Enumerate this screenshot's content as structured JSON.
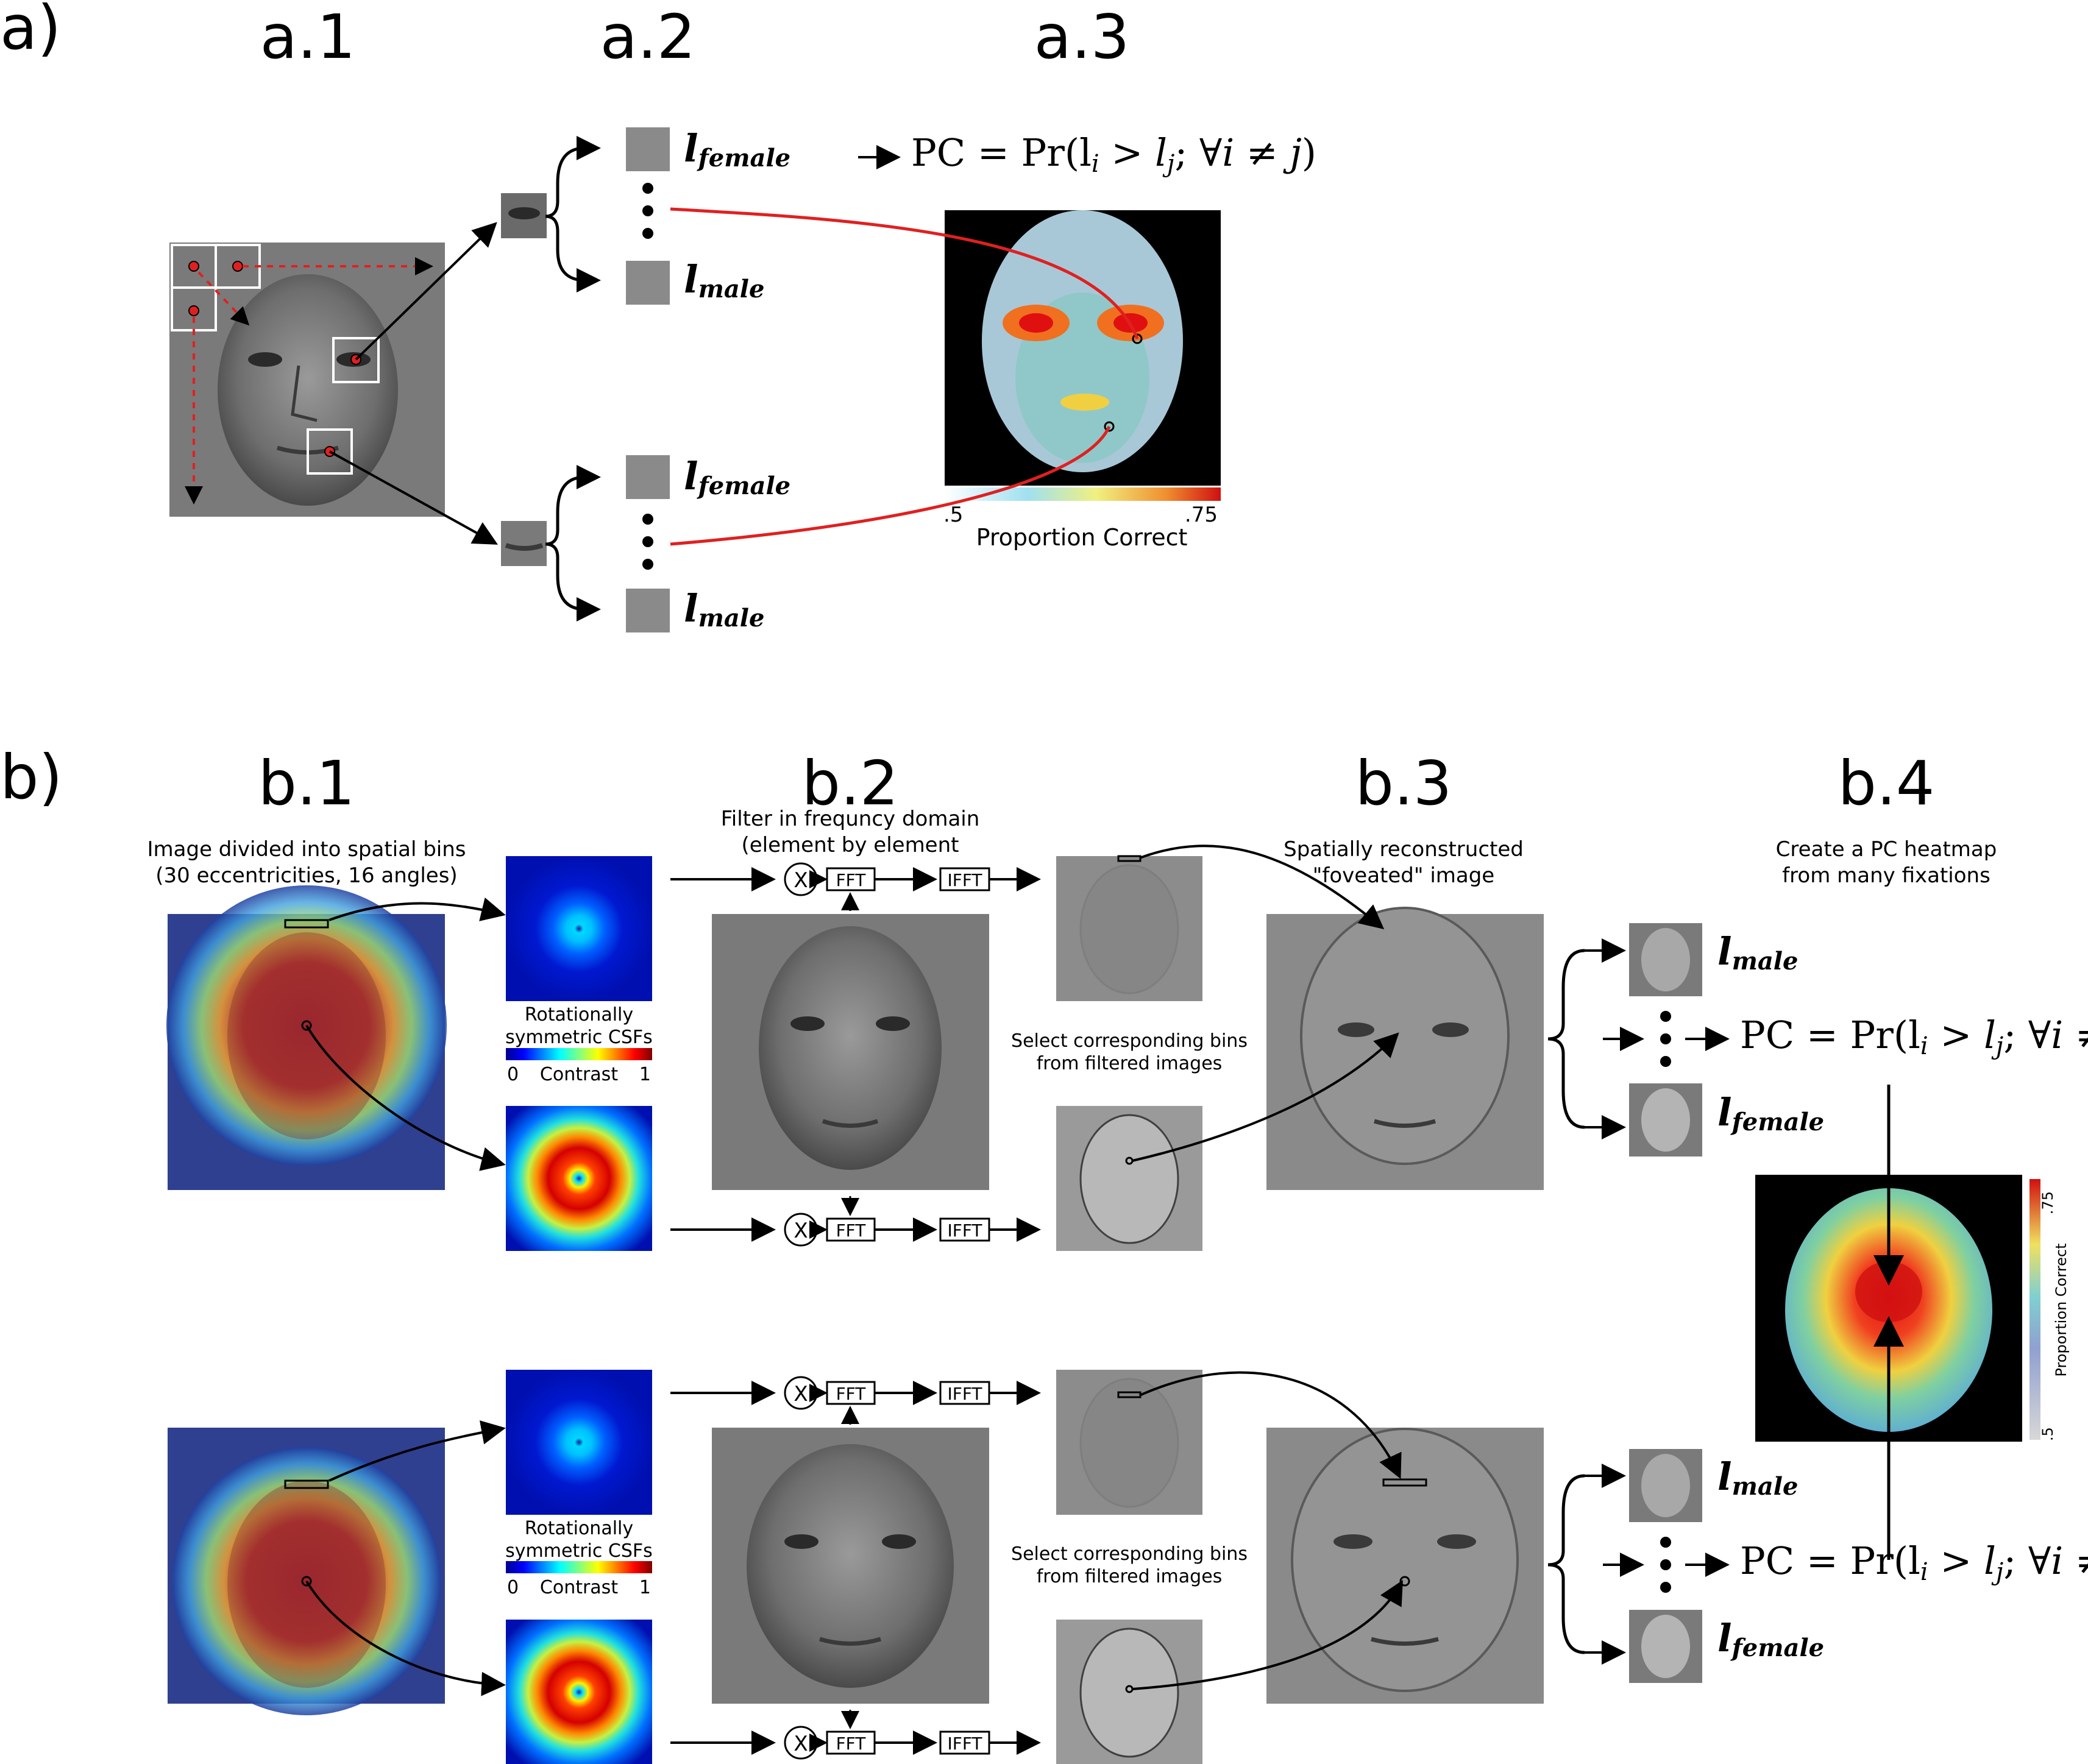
{
  "panel_a": {
    "label": "a)",
    "titles": {
      "a1": "a.1",
      "a2": "a.2",
      "a3": "a.3"
    },
    "labels": {
      "female": "female",
      "male": "male"
    },
    "formula": "PC = Pr(l",
    "heatmap": {
      "colorbar_min": ".5",
      "colorbar_max": ".75",
      "colorbar_title": "Proportion Correct"
    }
  },
  "panel_b": {
    "label": "b)",
    "titles": {
      "b1": "b.1",
      "b2": "b.2",
      "b3": "b.3",
      "b4": "b.4"
    },
    "b1_caption_line1": "Image divided into spatial bins",
    "b1_caption_line2": "(30 eccentricities, 16 angles)",
    "b2_caption_line1": "Filter in frequncy domain",
    "b2_caption_line2": "(element by element",
    "b3_caption_line1": "Spatially reconstructed",
    "b3_caption_line2": "\"foveated\" image",
    "b4_caption_line1": "Create a PC heatmap",
    "b4_caption_line2": "from many fixations",
    "csf_line1": "Rotationally",
    "csf_line2": "symmetric CSFs",
    "csf_min": "0",
    "csf_mid": "Contrast",
    "csf_max": "1",
    "select_line1": "Select corresponding bins",
    "select_line2": "from filtered images",
    "multiply": "X",
    "fft": "FFT",
    "ifft": "IFFT",
    "heatmap_colorbar_title": "Proportion Correct",
    "heatmap_colorbar_min": ".5",
    "heatmap_colorbar_max": ".75"
  },
  "colors": {
    "arrow_red": "#e02020",
    "heat_red": "#d42020",
    "bg_gray": "#7a7a7a"
  }
}
